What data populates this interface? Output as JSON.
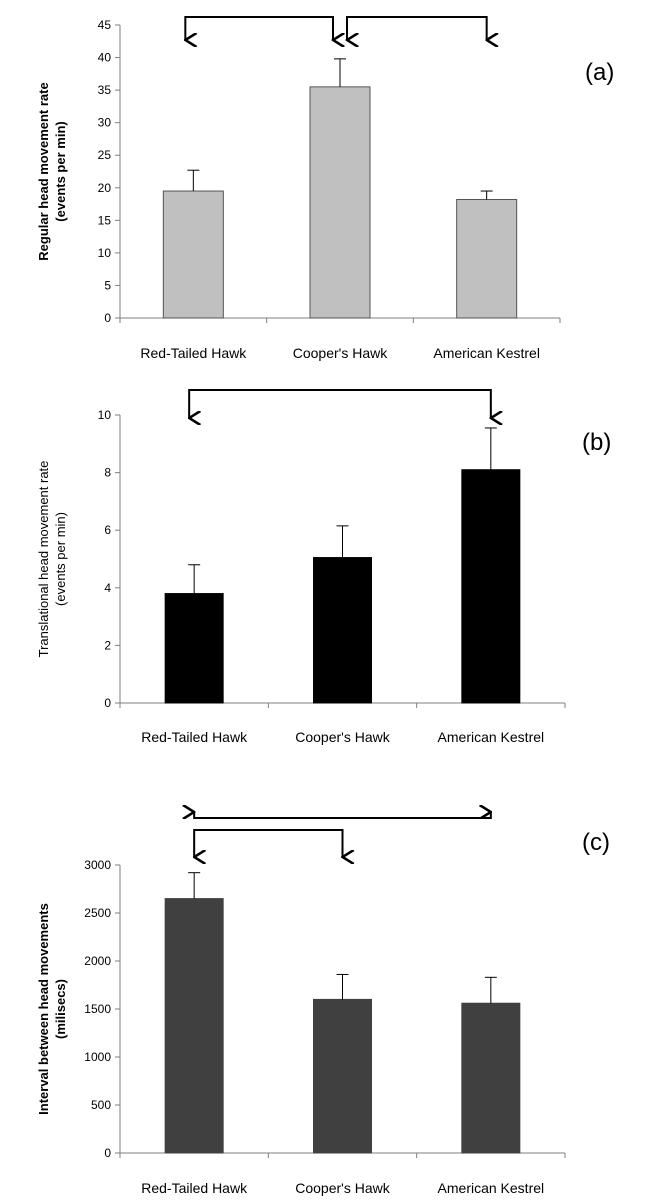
{
  "chart_data": [
    {
      "type": "bar",
      "panel_label": "(a)",
      "categories": [
        "Red-Tailed Hawk",
        "Cooper's Hawk",
        "American Kestrel"
      ],
      "values": [
        19.5,
        35.5,
        18.2
      ],
      "errors": [
        3.2,
        4.3,
        1.3
      ],
      "ylabel_line1": "Regular head movement rate",
      "ylabel_line2": "(events per min)",
      "ylim": [
        0,
        45
      ],
      "yticks": [
        0,
        5,
        10,
        15,
        20,
        25,
        30,
        35,
        40,
        45
      ],
      "bar_color": "#c0c0c0",
      "brackets": [
        [
          0,
          1
        ],
        [
          1,
          2
        ]
      ]
    },
    {
      "type": "bar",
      "panel_label": "(b)",
      "categories": [
        "Red-Tailed Hawk",
        "Cooper's Hawk",
        "American Kestrel"
      ],
      "values": [
        3.8,
        5.05,
        8.1
      ],
      "errors": [
        1.0,
        1.1,
        1.45
      ],
      "ylabel_line1": "Translational head movement rate",
      "ylabel_line2": "(events per min)",
      "ylim": [
        0,
        10
      ],
      "yticks": [
        0,
        2,
        4,
        6,
        8,
        10
      ],
      "bar_color": "#000000",
      "brackets": [
        [
          0,
          2
        ]
      ]
    },
    {
      "type": "bar",
      "panel_label": "(c)",
      "categories": [
        "Red-Tailed Hawk",
        "Cooper's Hawk",
        "American Kestrel"
      ],
      "values": [
        2650,
        1600,
        1560
      ],
      "errors": [
        270,
        260,
        270
      ],
      "ylabel_line1": "Interval between head movements",
      "ylabel_line2": "(milisecs)",
      "ylim": [
        0,
        3000
      ],
      "yticks": [
        0,
        500,
        1000,
        1500,
        2000,
        2500,
        3000
      ],
      "bar_color": "#404040",
      "brackets": [
        [
          0,
          2
        ],
        [
          0,
          1
        ]
      ]
    }
  ]
}
